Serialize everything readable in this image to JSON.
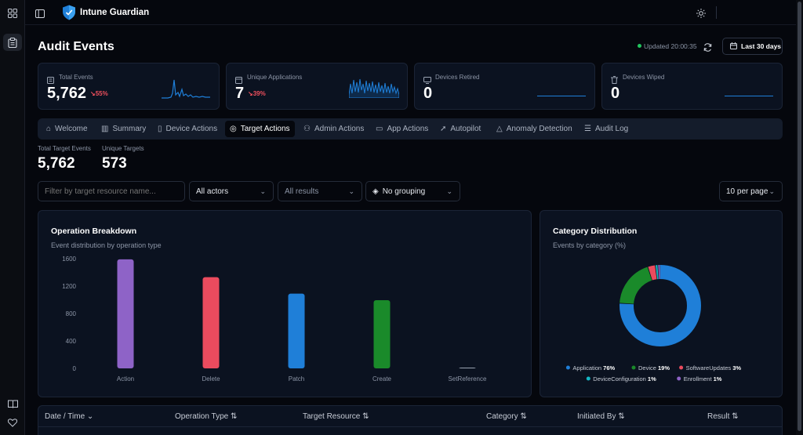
{
  "app": {
    "title": "Intune Guardian"
  },
  "page": {
    "title": "Audit Events",
    "updated": "Updated 20:00:35",
    "range_button": "Last 30 days"
  },
  "stats": [
    {
      "label": "Total Events",
      "value": "5,762",
      "delta": "55%"
    },
    {
      "label": "Unique Applications",
      "value": "7",
      "delta": "39%"
    },
    {
      "label": "Devices Retired",
      "value": "0"
    },
    {
      "label": "Devices Wiped",
      "value": "0"
    }
  ],
  "tabs": [
    {
      "label": "Welcome",
      "icon": "home-icon"
    },
    {
      "label": "Summary",
      "icon": "bar-chart-icon"
    },
    {
      "label": "Device Actions",
      "icon": "device-icon"
    },
    {
      "label": "Target Actions",
      "icon": "target-icon",
      "active": true
    },
    {
      "label": "Admin Actions",
      "icon": "users-icon"
    },
    {
      "label": "App Actions",
      "icon": "app-window-icon"
    },
    {
      "label": "Autopilot",
      "icon": "rocket-icon"
    },
    {
      "label": "Anomaly Detection",
      "icon": "warning-icon"
    },
    {
      "label": "Audit Log",
      "icon": "log-icon"
    }
  ],
  "summary": {
    "total_label": "Total Target Events",
    "total_value": "5,762",
    "unique_label": "Unique Targets",
    "unique_value": "573"
  },
  "filters": {
    "search_placeholder": "Filter by target resource name...",
    "actors": "All actors",
    "results": "All results",
    "grouping": "No grouping",
    "per_page": "10 per page"
  },
  "colors": {
    "accent": "#1f7fd8",
    "negative": "#f0505d",
    "success": "#22c55e"
  },
  "charts": {
    "operation": {
      "title": "Operation Breakdown",
      "subtitle": "Event distribution by operation type"
    },
    "category": {
      "title": "Category Distribution",
      "subtitle": "Events by category (%)"
    }
  },
  "chart_data": [
    {
      "type": "bar",
      "title": "Operation Breakdown",
      "categories": [
        "Action",
        "Delete",
        "Patch",
        "Create",
        "SetReference"
      ],
      "values": [
        1590,
        1330,
        1090,
        995,
        5
      ],
      "colors": [
        "#8e63c7",
        "#eb4b5e",
        "#1f7fd8",
        "#1a8a2a",
        "#9aa3b2"
      ],
      "yticks": [
        "1600",
        "1200",
        "800",
        "400",
        "0"
      ],
      "ylim": [
        0,
        1600
      ]
    },
    {
      "type": "pie",
      "title": "Category Distribution",
      "labels": [
        "Application",
        "Device",
        "SoftwareUpdates",
        "DeviceConfiguration",
        "Enrollment"
      ],
      "display": [
        "76%",
        "19%",
        "3%",
        "1%",
        "1%"
      ],
      "values": [
        76,
        19,
        3,
        1,
        1
      ],
      "colors": [
        "#1f7fd8",
        "#1a8a2a",
        "#eb4b5e",
        "#14b8c6",
        "#8e63c7"
      ]
    }
  ],
  "table": {
    "headers": [
      "Date / Time",
      "Operation Type",
      "Target Resource",
      "Category",
      "Initiated By",
      "Result"
    ]
  }
}
